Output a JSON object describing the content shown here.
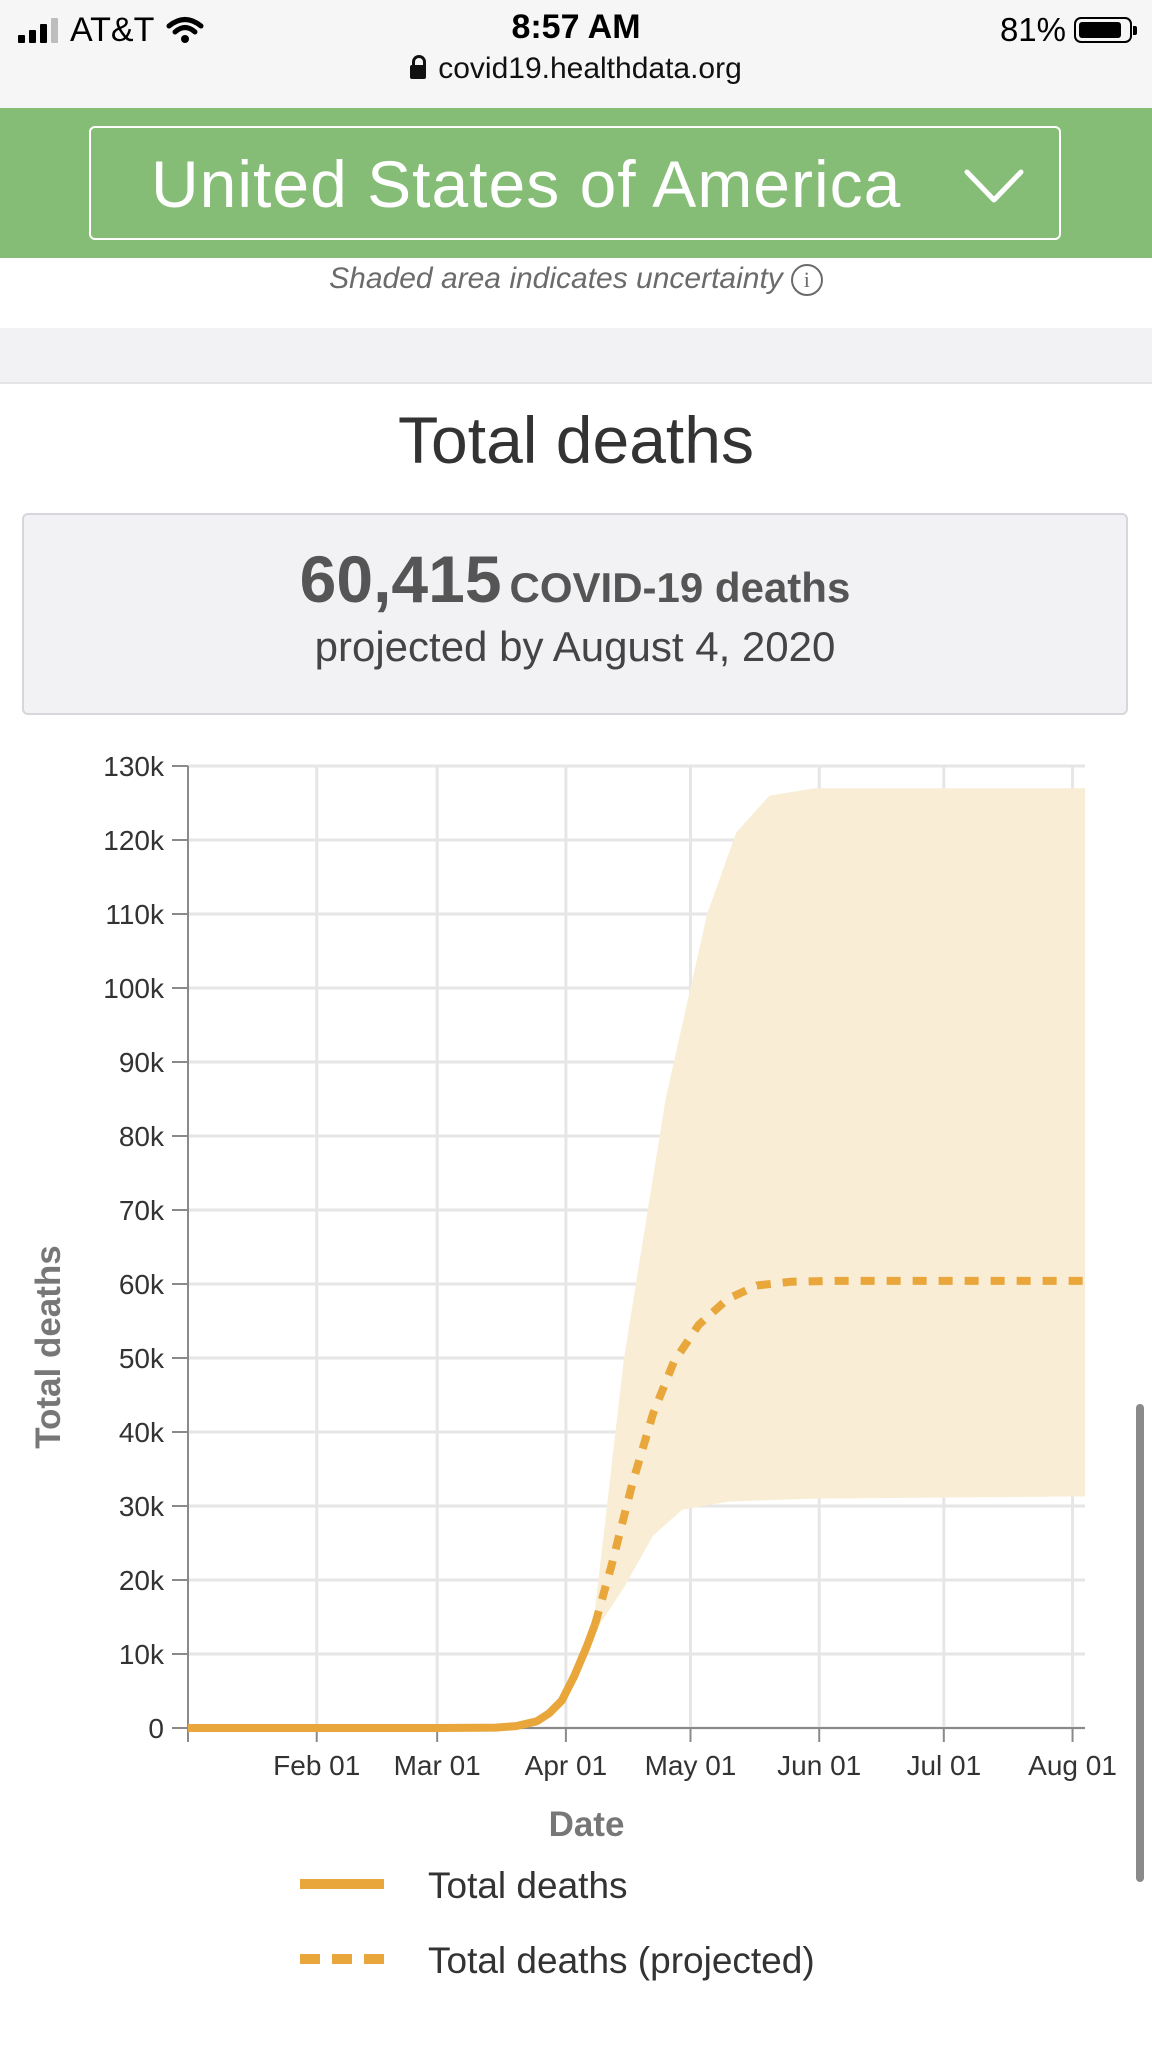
{
  "status_bar": {
    "carrier": "AT&T",
    "time": "8:57 AM",
    "battery": "81%",
    "battery_level": 0.81
  },
  "browser": {
    "url": "covid19.healthdata.org"
  },
  "header": {
    "country": "United States of America"
  },
  "uncertainty_note": "Shaded area indicates uncertainty",
  "section_title": "Total deaths",
  "summary": {
    "number": "60,415",
    "label": "COVID-19 deaths",
    "sub": "projected by August 4, 2020"
  },
  "chart_data": {
    "type": "line",
    "xlabel": "Date",
    "ylabel": "Total deaths",
    "ylim": [
      0,
      130000
    ],
    "xlim": [
      "2020-01-01",
      "2020-08-04"
    ],
    "grid": true,
    "x_ticks": [
      "2020-02-01",
      "2020-03-01",
      "2020-04-01",
      "2020-05-01",
      "2020-06-01",
      "2020-07-01",
      "2020-08-01"
    ],
    "x_tick_labels": [
      "Feb 01",
      "Mar 01",
      "Apr 01",
      "May 01",
      "Jun 01",
      "Jul 01",
      "Aug 01"
    ],
    "y_ticks": [
      0,
      10000,
      20000,
      30000,
      40000,
      50000,
      60000,
      70000,
      80000,
      90000,
      100000,
      110000,
      120000,
      130000
    ],
    "y_tick_labels": [
      "0",
      "10k",
      "20k",
      "30k",
      "40k",
      "50k",
      "60k",
      "70k",
      "80k",
      "90k",
      "100k",
      "110k",
      "120k",
      "130k"
    ],
    "series": [
      {
        "name": "Total deaths",
        "style": "solid",
        "color": "#e8a63b",
        "points": [
          [
            "2020-01-01",
            0
          ],
          [
            "2020-03-01",
            0
          ],
          [
            "2020-03-15",
            60
          ],
          [
            "2020-03-20",
            250
          ],
          [
            "2020-03-25",
            900
          ],
          [
            "2020-03-28",
            2000
          ],
          [
            "2020-03-31",
            3700
          ],
          [
            "2020-04-03",
            7000
          ],
          [
            "2020-04-06",
            11000
          ],
          [
            "2020-04-08",
            14000
          ]
        ]
      },
      {
        "name": "Total deaths (projected)",
        "style": "dashed",
        "color": "#e8a63b",
        "points": [
          [
            "2020-04-08",
            14000
          ],
          [
            "2020-04-12",
            22000
          ],
          [
            "2020-04-17",
            33000
          ],
          [
            "2020-04-22",
            42500
          ],
          [
            "2020-04-27",
            49500
          ],
          [
            "2020-05-03",
            54500
          ],
          [
            "2020-05-10",
            58000
          ],
          [
            "2020-05-17",
            59800
          ],
          [
            "2020-05-25",
            60300
          ],
          [
            "2020-06-05",
            60415
          ],
          [
            "2020-08-04",
            60415
          ]
        ]
      }
    ],
    "uncertainty_band": {
      "color": "#f9edd6",
      "upper": [
        [
          "2020-04-08",
          16000
        ],
        [
          "2020-04-15",
          50000
        ],
        [
          "2020-04-25",
          85000
        ],
        [
          "2020-05-05",
          110000
        ],
        [
          "2020-05-12",
          121000
        ],
        [
          "2020-05-20",
          126000
        ],
        [
          "2020-05-31",
          127000
        ],
        [
          "2020-08-04",
          127000
        ]
      ],
      "lower": [
        [
          "2020-04-08",
          13000
        ],
        [
          "2020-04-15",
          19000
        ],
        [
          "2020-04-22",
          26000
        ],
        [
          "2020-04-29",
          29500
        ],
        [
          "2020-05-10",
          30600
        ],
        [
          "2020-05-31",
          31000
        ],
        [
          "2020-08-04",
          31300
        ]
      ]
    }
  }
}
